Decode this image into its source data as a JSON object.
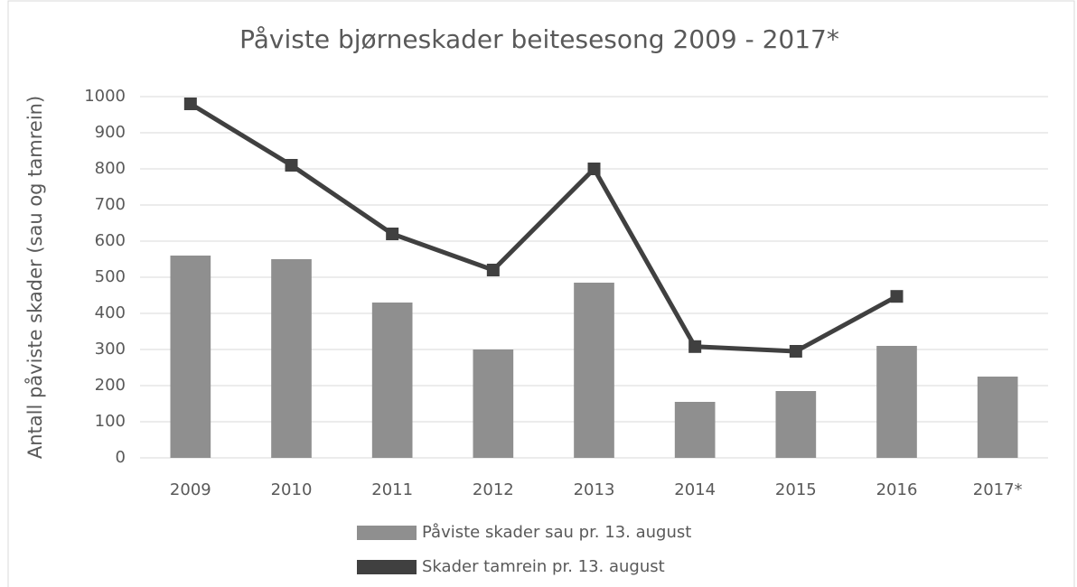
{
  "chart_data": {
    "type": "bar_line",
    "title": "Påviste bjørneskader beitesesong 2009 - 2017*",
    "y_label": "Antall påviste skader (sau og tamrein)",
    "categories": [
      "2009",
      "2010",
      "2011",
      "2012",
      "2013",
      "2014",
      "2015",
      "2016",
      "2017*"
    ],
    "series": [
      {
        "name": "Påviste skader sau pr. 13. august",
        "color": "#8f8f8f",
        "type": "bar",
        "values": [
          560,
          550,
          430,
          300,
          485,
          155,
          185,
          310,
          225
        ]
      },
      {
        "name": "Skader tamrein pr. 13. august",
        "color": "#404040",
        "type": "line",
        "values": [
          980,
          810,
          620,
          520,
          800,
          308,
          295,
          447,
          null
        ]
      }
    ],
    "ylim": [
      0,
      1000
    ],
    "yticks": [
      0,
      100,
      200,
      300,
      400,
      500,
      600,
      700,
      800,
      900,
      1000
    ],
    "grid": true,
    "legend": "bottom"
  }
}
